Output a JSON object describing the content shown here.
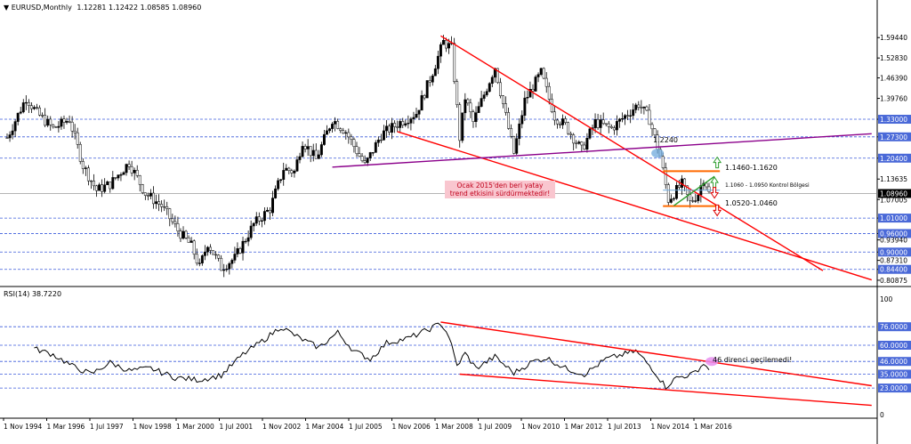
{
  "header": {
    "symbol": "EURUSD",
    "timeframe": ",Monthly",
    "ohlc": "1.12281 1.12422 1.08585 1.08960"
  },
  "rsi_header": "RSI(14) 38.7220",
  "annotations": {
    "level_1224": "1.2240",
    "zone_high": "1.1460-1.1620",
    "zone_mid": "1.1060 - 1.0950 Kontrol Bölgesi",
    "zone_low": "1.0520-1.0460",
    "note_line1": "Ocak 2015'den beri yatay",
    "note_line2": "trend etkisini sürdürmektedir!",
    "rsi_note": "46 direnci geçilemedi!"
  },
  "colors": {
    "up_bar": "#000000",
    "grid": "#3b5bdb",
    "channel": "#ff0000",
    "support_line": "#8b008b",
    "rsi_line": "#000000",
    "highlight_blue": "#6fa8dc",
    "highlight_pink": "#e78ff0",
    "orange_box": "#ff6a00",
    "price_tag_bg": "#4a69d8",
    "current_tag_bg": "#000000"
  },
  "chart_data": [
    {
      "type": "candlestick",
      "title": "EURUSD',Monthly",
      "y_ticks": [
        1.5944,
        1.5283,
        1.4639,
        1.3976,
        1.33,
        1.273,
        1.204,
        1.13635,
        1.07005,
        1.01,
        0.96,
        0.9394,
        0.9,
        0.8731,
        0.844,
        0.80875
      ],
      "y_ticks_highlighted": [
        1.33,
        1.273,
        1.204,
        1.01,
        0.96,
        0.9,
        0.844
      ],
      "y_tick_labels": [
        "1.59440",
        "1.52830",
        "1.46390",
        "1.39760",
        "1.33000",
        "1.27300",
        "1.20400",
        "1.13635",
        "1.07005",
        "1.01000",
        "0.96000",
        "0.93940",
        "0.90000",
        "0.87310",
        "0.84400",
        "0.80875"
      ],
      "current_price": 1.0896,
      "current_price_label": "1.08960",
      "ylim": [
        0.8,
        1.67
      ],
      "x_tick_labels": [
        "1 Nov 1994",
        "1 Mar 1996",
        "1 Jul 1997",
        "1 Nov 1998",
        "1 Mar 2000",
        "1 Jul 2001",
        "1 Nov 2002",
        "1 Mar 2004",
        "1 Jul 2005",
        "1 Nov 2006",
        "1 Mar 2008",
        "1 Jul 2009",
        "1 Nov 2010",
        "1 Mar 2012",
        "1 Jul 2013",
        "1 Nov 2014",
        "1 Mar 2016"
      ],
      "close_path": [
        [
          "1994-11",
          1.27
        ],
        [
          "1995-06",
          1.4
        ],
        [
          "1995-10",
          1.35
        ],
        [
          "1996-04",
          1.3
        ],
        [
          "1996-10",
          1.33
        ],
        [
          "1997-03",
          1.18
        ],
        [
          "1997-08",
          1.1
        ],
        [
          "1998-01",
          1.12
        ],
        [
          "1998-08",
          1.19
        ],
        [
          "1999-02",
          1.09
        ],
        [
          "1999-08",
          1.05
        ],
        [
          "2000-02",
          0.97
        ],
        [
          "2000-07",
          0.92
        ],
        [
          "2000-10",
          0.85
        ],
        [
          "2001-01",
          0.93
        ],
        [
          "2001-06",
          0.85
        ],
        [
          "2001-11",
          0.88
        ],
        [
          "2002-06",
          0.99
        ],
        [
          "2002-12",
          1.04
        ],
        [
          "2003-05",
          1.17
        ],
        [
          "2003-09",
          1.16
        ],
        [
          "2003-12",
          1.26
        ],
        [
          "2004-05",
          1.2
        ],
        [
          "2004-11",
          1.33
        ],
        [
          "2005-04",
          1.29
        ],
        [
          "2005-11",
          1.18
        ],
        [
          "2006-05",
          1.28
        ],
        [
          "2006-12",
          1.32
        ],
        [
          "2007-06",
          1.35
        ],
        [
          "2007-11",
          1.46
        ],
        [
          "2008-04",
          1.58
        ],
        [
          "2008-07",
          1.56
        ],
        [
          "2008-10",
          1.27
        ],
        [
          "2008-12",
          1.4
        ],
        [
          "2009-03",
          1.32
        ],
        [
          "2009-11",
          1.5
        ],
        [
          "2010-06",
          1.22
        ],
        [
          "2010-10",
          1.39
        ],
        [
          "2011-04",
          1.48
        ],
        [
          "2011-09",
          1.34
        ],
        [
          "2012-01",
          1.31
        ],
        [
          "2012-07",
          1.23
        ],
        [
          "2012-12",
          1.32
        ],
        [
          "2013-06",
          1.3
        ],
        [
          "2014-04",
          1.38
        ],
        [
          "2014-08",
          1.33
        ],
        [
          "2014-12",
          1.21
        ],
        [
          "2015-03",
          1.07
        ],
        [
          "2015-08",
          1.12
        ],
        [
          "2015-11",
          1.06
        ],
        [
          "2016-02",
          1.09
        ],
        [
          "2016-04",
          1.14
        ],
        [
          "2016-05",
          1.12
        ],
        [
          "2016-06",
          1.0896
        ]
      ],
      "drawn_lines": [
        {
          "name": "upper-channel",
          "from": [
            "2008-03",
            1.6
          ],
          "to": [
            "2019-12",
            0.84
          ]
        },
        {
          "name": "lower-channel",
          "from": [
            "2006-11",
            1.29
          ],
          "to": [
            "2021-06",
            0.81
          ]
        },
        {
          "name": "support-line",
          "from": [
            "2004-11",
            1.175
          ],
          "to": [
            "2021-06",
            1.283
          ]
        }
      ],
      "zones": [
        {
          "name": "zone-high",
          "price": 1.162
        },
        {
          "name": "zone-mid",
          "price": 1.1005
        },
        {
          "name": "zone-low",
          "price": 1.049
        }
      ]
    },
    {
      "type": "line",
      "title": "RSI(14) 38.7220",
      "y_ticks": [
        100,
        76.0,
        60.0,
        46.0,
        35.0,
        23.0,
        0
      ],
      "y_tick_labels": [
        "100",
        "76.0000",
        "60.0000",
        "46.0000",
        "35.0000",
        "23.0000",
        "0"
      ],
      "y_ticks_highlighted": [
        76.0,
        60.0,
        46.0,
        35.0,
        23.0
      ],
      "ylim": [
        0,
        100
      ],
      "rsi_path": [
        [
          "1995-09",
          57
        ],
        [
          "1996-04",
          52
        ],
        [
          "1996-11",
          42
        ],
        [
          "1997-06",
          35
        ],
        [
          "1998-01",
          45
        ],
        [
          "1998-08",
          38
        ],
        [
          "1999-04",
          40
        ],
        [
          "2000-01",
          32
        ],
        [
          "2000-10",
          30
        ],
        [
          "2001-06",
          34
        ],
        [
          "2002-02",
          52
        ],
        [
          "2002-10",
          65
        ],
        [
          "2003-04",
          76
        ],
        [
          "2003-11",
          66
        ],
        [
          "2004-06",
          58
        ],
        [
          "2005-01",
          71
        ],
        [
          "2005-07",
          55
        ],
        [
          "2006-01",
          48
        ],
        [
          "2006-07",
          62
        ],
        [
          "2007-03",
          66
        ],
        [
          "2007-10",
          73
        ],
        [
          "2008-03",
          79
        ],
        [
          "2008-06",
          68
        ],
        [
          "2008-09",
          42
        ],
        [
          "2008-12",
          53
        ],
        [
          "2009-04",
          40
        ],
        [
          "2009-11",
          50
        ],
        [
          "2010-06",
          36
        ],
        [
          "2011-01",
          46
        ],
        [
          "2011-06",
          49
        ],
        [
          "2012-01",
          40
        ],
        [
          "2012-08",
          35
        ],
        [
          "2013-04",
          48
        ],
        [
          "2014-03",
          55
        ],
        [
          "2014-09",
          40
        ],
        [
          "2015-02",
          24
        ],
        [
          "2015-06",
          32
        ],
        [
          "2015-12",
          35
        ],
        [
          "2016-04",
          44
        ],
        [
          "2016-06",
          38.722
        ]
      ],
      "drawn_lines": [
        {
          "name": "rsi-upper-trend",
          "from": [
            "2008-03",
            80
          ],
          "to": [
            "2021-06",
            25
          ]
        },
        {
          "name": "rsi-lower-trend",
          "from": [
            "2008-10",
            35
          ],
          "to": [
            "2021-06",
            8
          ]
        }
      ]
    }
  ]
}
